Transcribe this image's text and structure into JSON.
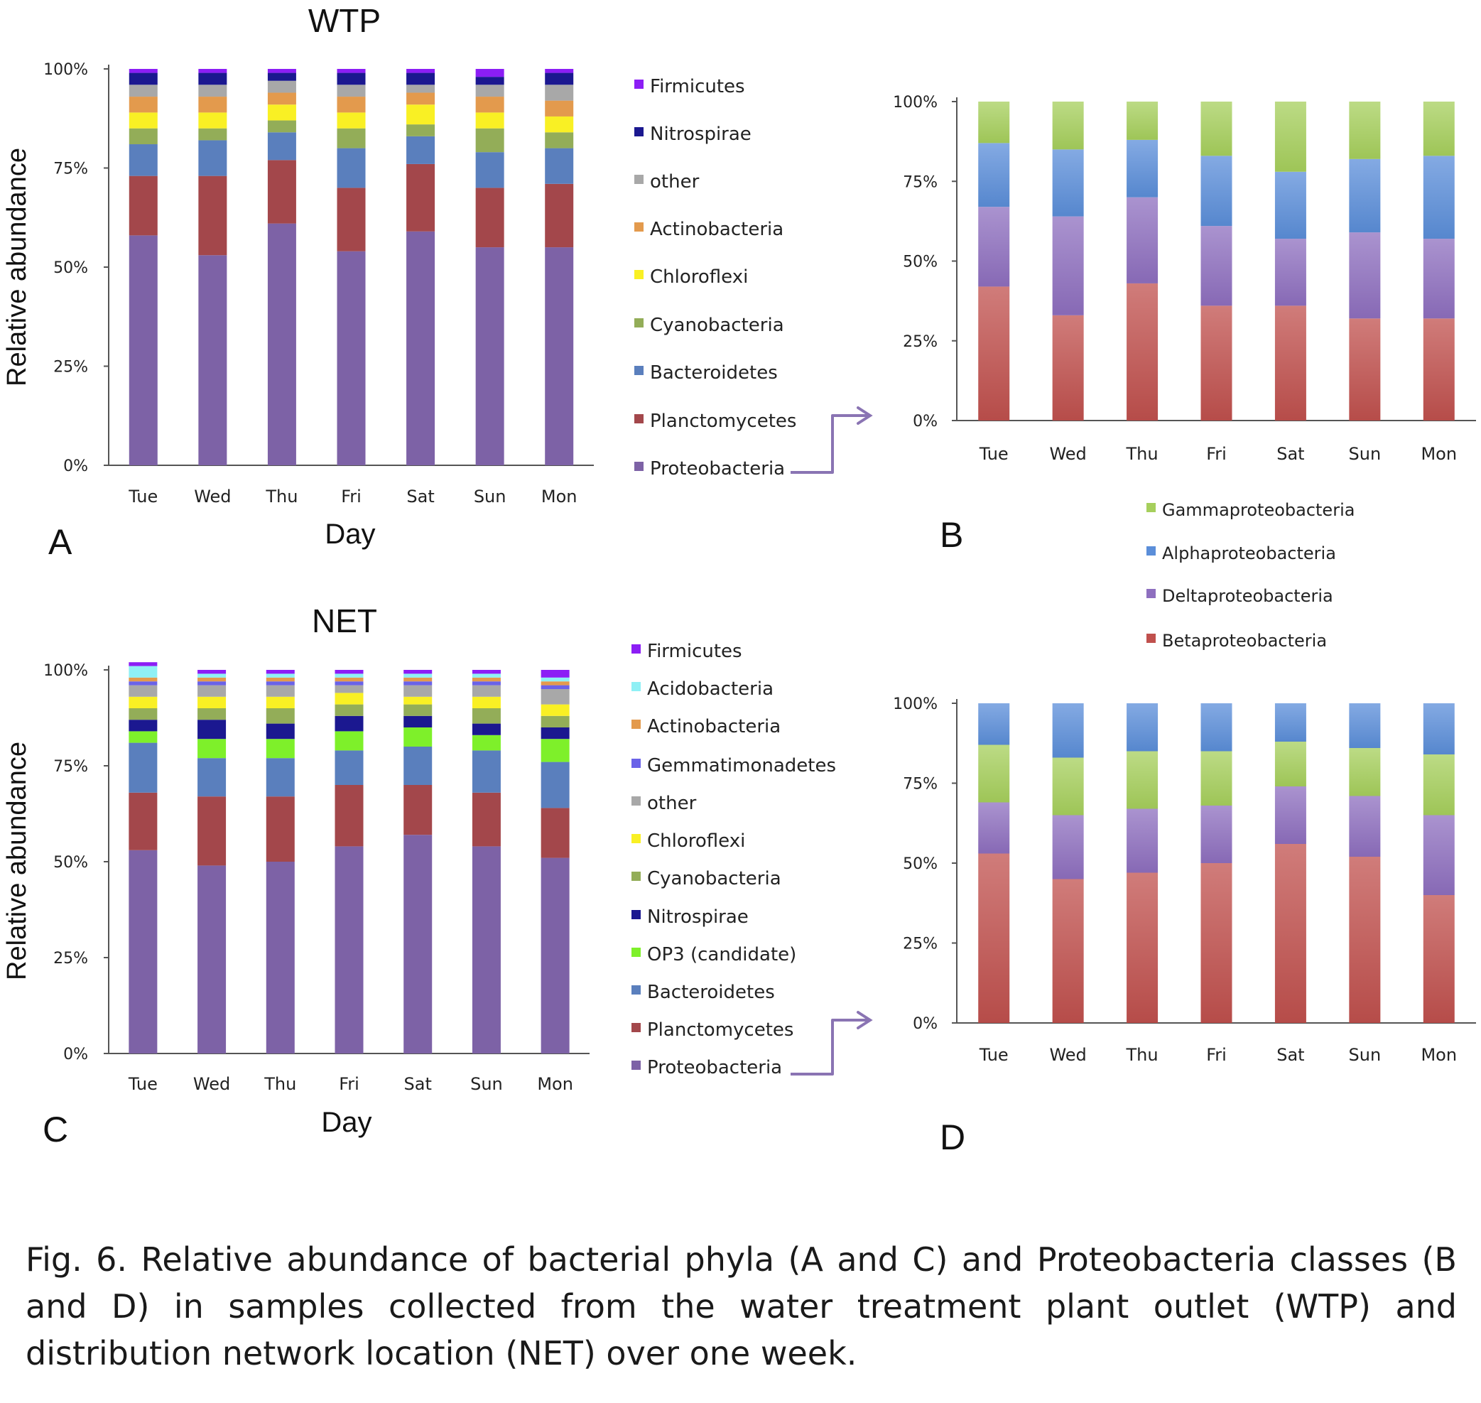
{
  "caption": "Fig. 6. Relative abundance of bacterial phyla (A and C) and Proteobacteria classes (B and D) in samples collected from the water treatment plant outlet (WTP) and distribution network location (NET) over one week.",
  "chart_data": [
    {
      "panel": "A",
      "type": "bar",
      "stacked": true,
      "title": "WTP",
      "xlabel": "Day",
      "ylabel": "Relative abundance",
      "ylim": [
        0,
        100
      ],
      "yticks": [
        "0%",
        "25%",
        "50%",
        "75%",
        "100%"
      ],
      "grid": false,
      "legend_position": "right",
      "categories": [
        "Tue",
        "Wed",
        "Thu",
        "Fri",
        "Sat",
        "Sun",
        "Mon"
      ],
      "series": [
        {
          "name": "Proteobacteria",
          "color": "#7d62a6",
          "values": [
            58,
            53,
            61,
            54,
            59,
            55,
            55
          ]
        },
        {
          "name": "Planctomycetes",
          "color": "#a3474b",
          "values": [
            15,
            20,
            16,
            16,
            17,
            15,
            16
          ]
        },
        {
          "name": "Bacteroidetes",
          "color": "#5a7fbd",
          "values": [
            8,
            9,
            7,
            10,
            7,
            9,
            9
          ]
        },
        {
          "name": "Cyanobacteria",
          "color": "#93ad58",
          "values": [
            4,
            3,
            3,
            5,
            3,
            6,
            4
          ]
        },
        {
          "name": "Chloroflexi",
          "color": "#f9f024",
          "values": [
            4,
            4,
            4,
            4,
            5,
            4,
            4
          ]
        },
        {
          "name": "Actinobacteria",
          "color": "#e39a4d",
          "values": [
            4,
            4,
            3,
            4,
            3,
            4,
            4
          ]
        },
        {
          "name": "other",
          "color": "#a8a8a8",
          "values": [
            3,
            3,
            3,
            3,
            2,
            3,
            4
          ]
        },
        {
          "name": "Nitrospirae",
          "color": "#1b1890",
          "values": [
            3,
            3,
            2,
            3,
            3,
            2,
            3
          ]
        },
        {
          "name": "Firmicutes",
          "color": "#8c1ef5",
          "values": [
            1,
            1,
            1,
            1,
            1,
            2,
            1
          ]
        }
      ]
    },
    {
      "panel": "B",
      "type": "bar",
      "stacked": true,
      "title": "",
      "xlabel": "",
      "ylabel": "",
      "ylim": [
        0,
        100
      ],
      "yticks": [
        "0%",
        "25%",
        "50%",
        "75%",
        "100%"
      ],
      "grid": false,
      "legend_position": "bottom",
      "categories": [
        "Tue",
        "Wed",
        "Thu",
        "Fri",
        "Sat",
        "Sun",
        "Mon"
      ],
      "series": [
        {
          "name": "Betaproteobacteria",
          "color": "#c0504d",
          "values": [
            42,
            33,
            43,
            36,
            36,
            32,
            32
          ]
        },
        {
          "name": "Deltaproteobacteria",
          "color": "#8e6fbf",
          "values": [
            25,
            31,
            27,
            25,
            21,
            27,
            25
          ]
        },
        {
          "name": "Alphaproteobacteria",
          "color": "#5b8ed9",
          "values": [
            20,
            21,
            18,
            22,
            21,
            23,
            26
          ]
        },
        {
          "name": "Gammaproteobacteria",
          "color": "#a6cf5c",
          "values": [
            13,
            15,
            12,
            17,
            22,
            18,
            17
          ]
        }
      ]
    },
    {
      "panel": "C",
      "type": "bar",
      "stacked": true,
      "title": "NET",
      "xlabel": "Day",
      "ylabel": "Relative abundance",
      "ylim": [
        0,
        100
      ],
      "yticks": [
        "0%",
        "25%",
        "50%",
        "75%",
        "100%"
      ],
      "grid": false,
      "legend_position": "right",
      "categories": [
        "Tue",
        "Wed",
        "Thu",
        "Fri",
        "Sat",
        "Sun",
        "Mon"
      ],
      "series": [
        {
          "name": "Proteobacteria",
          "color": "#7d62a6",
          "values": [
            53,
            49,
            50,
            54,
            57,
            54,
            51
          ]
        },
        {
          "name": "Planctomycetes",
          "color": "#a3474b",
          "values": [
            15,
            18,
            17,
            16,
            13,
            14,
            13
          ]
        },
        {
          "name": "Bacteroidetes",
          "color": "#5a7fbd",
          "values": [
            13,
            10,
            10,
            9,
            10,
            11,
            12
          ]
        },
        {
          "name": "OP3 (candidate)",
          "color": "#7ef02a",
          "values": [
            3,
            5,
            5,
            5,
            5,
            4,
            6
          ]
        },
        {
          "name": "Nitrospirae",
          "color": "#1b1890",
          "values": [
            3,
            5,
            4,
            4,
            3,
            3,
            3
          ]
        },
        {
          "name": "Cyanobacteria",
          "color": "#93ad58",
          "values": [
            3,
            3,
            4,
            3,
            3,
            4,
            3
          ]
        },
        {
          "name": "Chloroflexi",
          "color": "#f9f024",
          "values": [
            3,
            3,
            3,
            3,
            2,
            3,
            3
          ]
        },
        {
          "name": "other",
          "color": "#a8a8a8",
          "values": [
            3,
            3,
            3,
            2,
            3,
            3,
            4
          ]
        },
        {
          "name": "Gemmatimonadetes",
          "color": "#6a62e8",
          "values": [
            1,
            1,
            1,
            1,
            1,
            1,
            1
          ]
        },
        {
          "name": "Actinobacteria",
          "color": "#e39a4d",
          "values": [
            1,
            1,
            1,
            1,
            1,
            1,
            1
          ]
        },
        {
          "name": "Acidobacteria",
          "color": "#8ff0f5",
          "values": [
            3,
            1,
            1,
            1,
            1,
            1,
            1
          ]
        },
        {
          "name": "Firmicutes",
          "color": "#8c1ef5",
          "values": [
            1,
            1,
            1,
            1,
            1,
            1,
            2
          ]
        }
      ]
    },
    {
      "panel": "D",
      "type": "bar",
      "stacked": true,
      "title": "",
      "xlabel": "",
      "ylabel": "",
      "ylim": [
        0,
        100
      ],
      "yticks": [
        "0%",
        "25%",
        "50%",
        "75%",
        "100%"
      ],
      "grid": false,
      "legend_position": "none",
      "categories": [
        "Tue",
        "Wed",
        "Thu",
        "Fri",
        "Sat",
        "Sun",
        "Mon"
      ],
      "series": [
        {
          "name": "Betaproteobacteria",
          "color": "#c0504d",
          "values": [
            53,
            45,
            47,
            50,
            56,
            52,
            40
          ]
        },
        {
          "name": "Deltaproteobacteria",
          "color": "#8e6fbf",
          "values": [
            16,
            20,
            20,
            18,
            18,
            19,
            25
          ]
        },
        {
          "name": "Gammaproteobacteria",
          "color": "#a6cf5c",
          "values": [
            18,
            18,
            18,
            17,
            14,
            15,
            19
          ]
        },
        {
          "name": "Alphaproteobacteria",
          "color": "#5b8ed9",
          "values": [
            13,
            17,
            15,
            15,
            12,
            14,
            16
          ]
        }
      ]
    }
  ]
}
